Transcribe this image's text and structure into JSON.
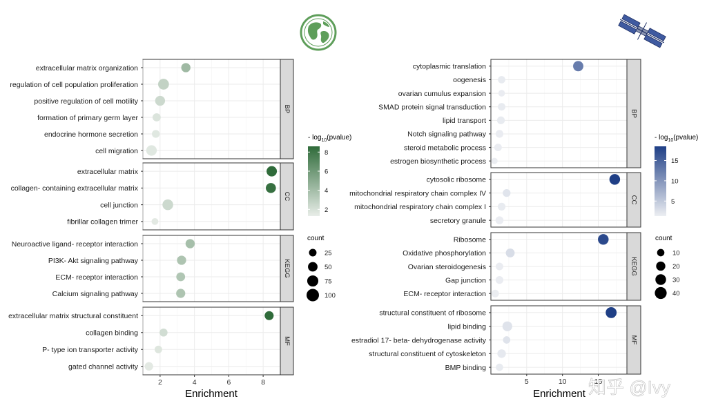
{
  "watermark": "知乎 @Ivy",
  "chart_data": [
    {
      "type": "scatter",
      "subtype": "dot-plot",
      "xlabel": "Enrichment",
      "xlim": [
        1.0,
        9.0
      ],
      "xticks": [
        2,
        4,
        6,
        8
      ],
      "color_legend": {
        "title_prefix": "- log",
        "title_sub": "10",
        "title_suffix": "(pvalue)",
        "ticks": [
          2,
          4,
          6,
          8
        ],
        "range": [
          1.3,
          8.6
        ],
        "low_color": "#e8ede8",
        "high_color": "#2f6b3a"
      },
      "size_legend": {
        "title": "count",
        "values": [
          25,
          50,
          75,
          100
        ]
      },
      "count_range": [
        5,
        100
      ],
      "panels": [
        {
          "name": "BP",
          "terms": [
            {
              "label": "extracellular matrix organization",
              "enrichment": 3.5,
              "neglog10p": 4.2,
              "count": 45
            },
            {
              "label": "regulation of cell population proliferation",
              "enrichment": 2.2,
              "neglog10p": 2.8,
              "count": 70
            },
            {
              "label": "positive regulation of cell motility",
              "enrichment": 2.0,
              "neglog10p": 2.4,
              "count": 55
            },
            {
              "label": "formation of primary germ layer",
              "enrichment": 1.8,
              "neglog10p": 1.8,
              "count": 32
            },
            {
              "label": "endocrine hormone secretion",
              "enrichment": 1.75,
              "neglog10p": 1.6,
              "count": 28
            },
            {
              "label": "cell migration",
              "enrichment": 1.5,
              "neglog10p": 1.6,
              "count": 65
            }
          ]
        },
        {
          "name": "CC",
          "terms": [
            {
              "label": "extracellular matrix",
              "enrichment": 8.5,
              "neglog10p": 8.6,
              "count": 62
            },
            {
              "label": "collagen- containing extracellular matrix",
              "enrichment": 8.45,
              "neglog10p": 8.3,
              "count": 58
            },
            {
              "label": "cell junction",
              "enrichment": 2.45,
              "neglog10p": 2.4,
              "count": 68
            },
            {
              "label": "fibrillar collagen trimer",
              "enrichment": 1.7,
              "neglog10p": 1.5,
              "count": 18
            }
          ]
        },
        {
          "name": "KEGG",
          "terms": [
            {
              "label": "Neuroactive ligand- receptor interaction",
              "enrichment": 3.75,
              "neglog10p": 3.9,
              "count": 45
            },
            {
              "label": "PI3K- Akt signaling pathway",
              "enrichment": 3.25,
              "neglog10p": 3.6,
              "count": 45
            },
            {
              "label": "ECM- receptor interaction",
              "enrichment": 3.2,
              "neglog10p": 3.5,
              "count": 40
            },
            {
              "label": "Calcium signaling pathway",
              "enrichment": 3.2,
              "neglog10p": 3.6,
              "count": 44
            }
          ]
        },
        {
          "name": "MF",
          "terms": [
            {
              "label": "extracellular matrix structural constituent",
              "enrichment": 8.35,
              "neglog10p": 8.6,
              "count": 42
            },
            {
              "label": "collagen binding",
              "enrichment": 2.2,
              "neglog10p": 2.2,
              "count": 30
            },
            {
              "label": "P- type ion transporter activity",
              "enrichment": 1.9,
              "neglog10p": 1.7,
              "count": 25
            },
            {
              "label": "gated channel activity",
              "enrichment": 1.35,
              "neglog10p": 1.5,
              "count": 35
            }
          ]
        }
      ]
    },
    {
      "type": "scatter",
      "subtype": "dot-plot",
      "xlabel": "Enrichment",
      "xlim": [
        0.0,
        19.0
      ],
      "xticks": [
        5,
        10,
        15
      ],
      "color_legend": {
        "title_prefix": "- log",
        "title_sub": "10",
        "title_suffix": "(pvalue)",
        "ticks": [
          5,
          10,
          15
        ],
        "range": [
          1.3,
          18.5
        ],
        "low_color": "#eceef2",
        "high_color": "#1f3f86"
      },
      "size_legend": {
        "title": "count",
        "values": [
          10,
          20,
          30,
          40
        ]
      },
      "count_range": [
        2,
        45
      ],
      "panels": [
        {
          "name": "BP",
          "terms": [
            {
              "label": "cytoplasmic translation",
              "enrichment": 12.2,
              "neglog10p": 12.5,
              "count": 27
            },
            {
              "label": "oogenesis",
              "enrichment": 1.5,
              "neglog10p": 1.6,
              "count": 10
            },
            {
              "label": "ovarian cumulus expansion",
              "enrichment": 1.5,
              "neglog10p": 1.5,
              "count": 7
            },
            {
              "label": "SMAD protein signal transduction",
              "enrichment": 1.5,
              "neglog10p": 1.6,
              "count": 11
            },
            {
              "label": "lipid transport",
              "enrichment": 1.4,
              "neglog10p": 1.6,
              "count": 12
            },
            {
              "label": "Notch signaling pathway",
              "enrichment": 1.2,
              "neglog10p": 1.5,
              "count": 12
            },
            {
              "label": "steroid metabolic process",
              "enrichment": 1.0,
              "neglog10p": 1.5,
              "count": 11
            },
            {
              "label": "estrogen biosynthetic process",
              "enrichment": 0.5,
              "neglog10p": 1.4,
              "count": 6
            }
          ]
        },
        {
          "name": "CC",
          "terms": [
            {
              "label": "cytosolic ribosome",
              "enrichment": 17.3,
              "neglog10p": 18.5,
              "count": 30
            },
            {
              "label": "mitochondrial respiratory chain complex IV",
              "enrichment": 2.2,
              "neglog10p": 2.3,
              "count": 12
            },
            {
              "label": "mitochondrial respiratory chain complex I",
              "enrichment": 1.5,
              "neglog10p": 1.6,
              "count": 12
            },
            {
              "label": "secretory granule",
              "enrichment": 1.2,
              "neglog10p": 1.5,
              "count": 13
            }
          ]
        },
        {
          "name": "KEGG",
          "terms": [
            {
              "label": "Ribosome",
              "enrichment": 15.7,
              "neglog10p": 17.5,
              "count": 30
            },
            {
              "label": "Oxidative phosphorylation",
              "enrichment": 2.7,
              "neglog10p": 3.0,
              "count": 18
            },
            {
              "label": "Ovarian steroidogenesis",
              "enrichment": 1.2,
              "neglog10p": 1.5,
              "count": 11
            },
            {
              "label": "Gap junction",
              "enrichment": 1.2,
              "neglog10p": 1.5,
              "count": 12
            },
            {
              "label": "ECM- receptor interaction",
              "enrichment": 0.6,
              "neglog10p": 1.4,
              "count": 11
            }
          ]
        },
        {
          "name": "MF",
          "terms": [
            {
              "label": "structural constituent of ribosome",
              "enrichment": 16.8,
              "neglog10p": 18.5,
              "count": 32
            },
            {
              "label": "lipid binding",
              "enrichment": 2.3,
              "neglog10p": 2.4,
              "count": 24
            },
            {
              "label": "estradiol 17- beta- dehydrogenase activity",
              "enrichment": 2.2,
              "neglog10p": 2.4,
              "count": 10
            },
            {
              "label": "structural constituent of cytoskeleton",
              "enrichment": 1.5,
              "neglog10p": 1.8,
              "count": 16
            },
            {
              "label": "BMP binding",
              "enrichment": 1.2,
              "neglog10p": 1.6,
              "count": 10
            }
          ]
        }
      ]
    }
  ]
}
